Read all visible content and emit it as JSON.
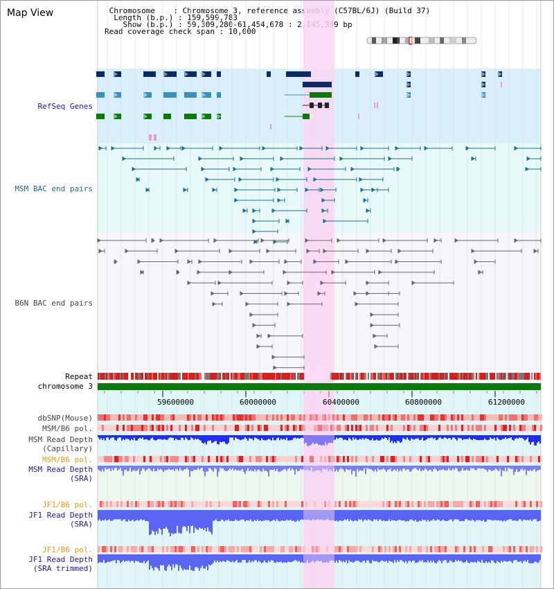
{
  "header": {
    "title": "Map View",
    "info_lines": [
      " Chromosome    : Chromosome 3, reference assembly (C57BL/6J) (Build 37)",
      "  Length (b.p.) : 159,599,783",
      "    Show (b.p.) : 59,309,280-61,454,678 : 2,145,399 bp",
      "Read coverage check span : 10,000"
    ]
  },
  "tracks": {
    "refseq": "RefSeq Genes",
    "msm_bac": "MSM BAC end pairs",
    "b6n_bac": "B6N BAC end pairs",
    "repeat": "Repeat",
    "chromosome": "chromosome 3",
    "dbsnp": "dbSNP(Mouse)",
    "msm_b6_pol_1": "MSM/B6 pol.",
    "msm_depth_cap_1": "MSM Read Depth",
    "msm_depth_cap_2": "(Capillary)",
    "msm_b6_pol_2": "MSM/B6 pol.",
    "msm_depth_sra_1": "MSM Read Depth",
    "msm_depth_sra_2": "(SRA)",
    "jf1_b6_pol_1": "JF1/B6 pol.",
    "jf1_depth_sra_1": "JF1 Read Depth",
    "jf1_depth_sra_2": "(SRA)",
    "jf1_b6_pol_2": "JF1/B6 pol.",
    "jf1_depth_trim_1": "JF1 Read Depth",
    "jf1_depth_trim_2": "(SRA trimmed)"
  },
  "axis": {
    "ticks": [
      "59600000",
      "60000000",
      "60400000",
      "60800000",
      "61200000"
    ]
  },
  "colors": {
    "highlight": "#f9d6f3",
    "refseq_bg": "#d9effa",
    "msm_bg": "#e6f8f8",
    "b6n_bg": "#f4f6f9",
    "lower_bg": "#e0f6f6",
    "refseq_navy": "#0b2a66",
    "refseq_steel": "#3b8fc0",
    "refseq_green": "#0a7a0a",
    "bac_teal": "#1d6f8c",
    "bac_gray": "#666666",
    "depth_blue": "#1f2ef0",
    "depth_light": "#7b7fe9"
  }
}
